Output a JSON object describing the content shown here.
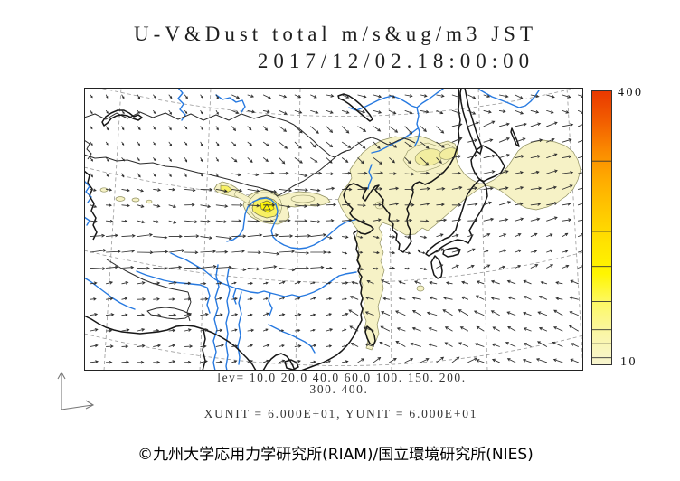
{
  "title": {
    "line1": "U-V&Dust total m/s&ug/m3 JST",
    "line2": "2017/12/02.18:00:00"
  },
  "legend": {
    "lev_line1": "lev= 10.0 20.0 40.0 60.0 100. 150. 200.",
    "lev_line2": "300. 400.",
    "units": "XUNIT = 6.000E+01, YUNIT = 6.000E+01"
  },
  "colorbar": {
    "max_label": "400",
    "min_label": "10",
    "levels": [
      10,
      20,
      40,
      60,
      100,
      150,
      200,
      300,
      400
    ],
    "stop_colors": [
      "#e93800",
      "#f25e00",
      "#fb8b00",
      "#ffae00",
      "#ffc900",
      "#ffe300",
      "#fff600",
      "#fdf868",
      "#faf6a8",
      "#f8f5d0"
    ]
  },
  "footer": {
    "credit": "©九州大学応用力学研究所(RIAM)/国立環境研究所(NIES)"
  },
  "map": {
    "colors": {
      "coast": "#161616",
      "border": "#2a2a2a",
      "river": "#2679e0",
      "graticule": "#999999",
      "arrow": "#2f2f2f",
      "dust_fill": "#f6f2c6",
      "dust_mid": "#f8f062",
      "dust_core": "#fdf405",
      "dust_outline": "#8e8e5e",
      "frame": "#222222"
    }
  }
}
